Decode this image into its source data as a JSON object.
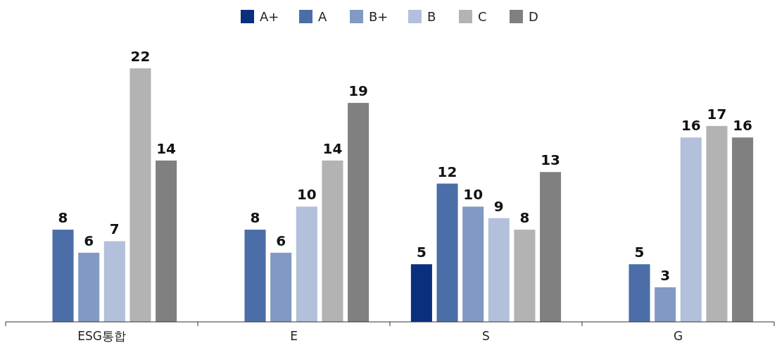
{
  "chart_data": {
    "type": "bar",
    "categories": [
      "ESG통합",
      "E",
      "S",
      "G"
    ],
    "series": [
      {
        "name": "A+",
        "color": "#0a2f7f",
        "values": [
          null,
          null,
          5,
          null
        ]
      },
      {
        "name": "A",
        "color": "#4c6ea8",
        "values": [
          8,
          8,
          12,
          5
        ]
      },
      {
        "name": "B+",
        "color": "#8199c4",
        "values": [
          6,
          6,
          10,
          3
        ]
      },
      {
        "name": "B",
        "color": "#b2c0dc",
        "values": [
          7,
          10,
          9,
          16
        ]
      },
      {
        "name": "C",
        "color": "#b3b3b3",
        "values": [
          22,
          14,
          8,
          17
        ]
      },
      {
        "name": "D",
        "color": "#808080",
        "values": [
          14,
          19,
          13,
          16
        ]
      }
    ],
    "data_labels": true,
    "legend": "top",
    "grid": false
  }
}
